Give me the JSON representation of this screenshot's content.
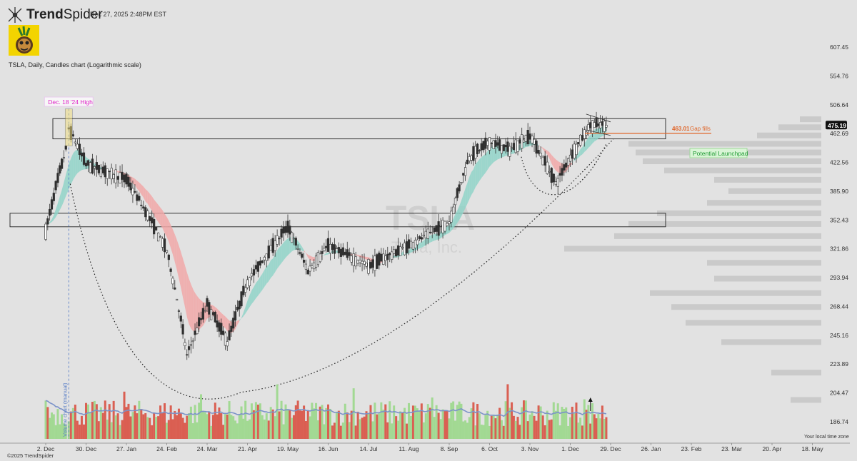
{
  "header": {
    "brand_bold": "Trend",
    "brand_light": "Spider",
    "timestamp": "Dec 27, 2025 2:48PM EST",
    "chart_title": "TSLA, Daily, Candles chart (Logarithmic scale)"
  },
  "footer": {
    "copyright": "©2025 TrendSpider",
    "timezone_note": "Your local time zone"
  },
  "watermark": {
    "symbol": "TSLA",
    "name": "Tesla, Inc."
  },
  "colors": {
    "up": "#3a3a3a",
    "down": "#3a3a3a",
    "ribbon_up": "#8fd3c8",
    "ribbon_down": "#f1a7a7",
    "vol_up": "#9ed88e",
    "vol_down": "#d9574a",
    "volume_ma": "#7b93c9",
    "annotation_pink": "#e020c8",
    "annotation_orange": "#e0662a",
    "annotation_green": "#1f9a33",
    "volume_profile": "#c4c4c4"
  },
  "chart_data": {
    "type": "candlestick",
    "symbol": "TSLA",
    "timeframe": "Daily",
    "scale": "log",
    "y_ticks": [
      "607.45",
      "554.76",
      "506.64",
      "462.69",
      "422.56",
      "385.90",
      "352.43",
      "321.86",
      "293.94",
      "268.44",
      "245.16",
      "223.89",
      "204.47",
      "186.74"
    ],
    "x_ticks": [
      "2. Dec",
      "30. Dec",
      "27. Jan",
      "24. Feb",
      "24. Mar",
      "21. Apr",
      "19. May",
      "16. Jun",
      "14. Jul",
      "11. Aug",
      "8. Sep",
      "6. Oct",
      "3. Nov",
      "1. Dec",
      "29. Dec",
      "26. Jan",
      "23. Feb",
      "23. Mar",
      "20. Apr",
      "18. May"
    ],
    "last_price": "475.19",
    "price_path": [
      [
        "2. Dec",
        340
      ],
      [
        "16. Dec",
        440
      ],
      [
        "18. Dec",
        470
      ],
      [
        "30. Dec",
        420
      ],
      [
        "27. Jan",
        400
      ],
      [
        "24. Feb",
        320
      ],
      [
        "10. Mar",
        230
      ],
      [
        "24. Mar",
        270
      ],
      [
        "7. Apr",
        240
      ],
      [
        "21. Apr",
        290
      ],
      [
        "19. May",
        345
      ],
      [
        "2. Jun",
        300
      ],
      [
        "16. Jun",
        325
      ],
      [
        "14. Jul",
        305
      ],
      [
        "11. Aug",
        325
      ],
      [
        "8. Sep",
        350
      ],
      [
        "22. Sep",
        430
      ],
      [
        "6. Oct",
        450
      ],
      [
        "20. Oct",
        440
      ],
      [
        "3. Nov",
        460
      ],
      [
        "21. Nov",
        395
      ],
      [
        "1. Dec",
        430
      ],
      [
        "15. Dec",
        475
      ],
      [
        "26. Dec",
        475
      ]
    ],
    "resistance_zones": [
      {
        "low": 455,
        "high": 485
      },
      {
        "low": 345,
        "high": 360
      }
    ],
    "annotations": [
      {
        "text": "Dec. 18 '24 High",
        "color": "pink"
      },
      {
        "text": "463.01",
        "color": "orange"
      },
      {
        "text": "Gap fills",
        "color": "orange"
      },
      {
        "text": "Potential Launchpad",
        "color": "green"
      },
      {
        "text": "Volume chart (manual)",
        "color": "blue"
      }
    ],
    "grid": false,
    "legend": "none"
  }
}
